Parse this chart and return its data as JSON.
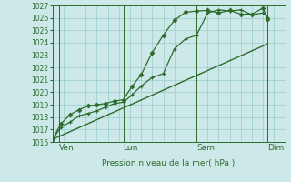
{
  "xlabel": "Pression niveau de la mer( hPa )",
  "bg_color": "#cce8e8",
  "grid_color": "#99cccc",
  "line_color": "#2d6b2d",
  "ylim": [
    1016,
    1027
  ],
  "xlim": [
    0,
    10.5
  ],
  "yticks": [
    1016,
    1017,
    1018,
    1019,
    1020,
    1021,
    1022,
    1023,
    1024,
    1025,
    1026,
    1027
  ],
  "day_labels": [
    "Ven",
    "Lun",
    "Sam",
    "Dim"
  ],
  "day_positions": [
    0.3,
    3.2,
    6.5,
    9.7
  ],
  "vline_positions": [
    0.3,
    3.2,
    6.5,
    9.7
  ],
  "series1_x": [
    0.0,
    0.4,
    0.8,
    1.2,
    1.6,
    2.0,
    2.4,
    2.8,
    3.2,
    3.6,
    4.0,
    4.5,
    5.0,
    5.5,
    6.0,
    6.5,
    7.0,
    7.5,
    8.0,
    8.5,
    9.0,
    9.5,
    9.7
  ],
  "series1_y": [
    1016.2,
    1017.2,
    1017.6,
    1018.1,
    1018.3,
    1018.5,
    1018.8,
    1019.1,
    1019.2,
    1019.8,
    1020.5,
    1021.2,
    1021.5,
    1023.5,
    1024.3,
    1024.6,
    1026.4,
    1026.65,
    1026.55,
    1026.65,
    1026.25,
    1026.4,
    1026.05
  ],
  "series2_x": [
    0.0,
    0.4,
    0.8,
    1.2,
    1.6,
    2.0,
    2.4,
    2.8,
    3.2,
    3.6,
    4.0,
    4.5,
    5.0,
    5.5,
    6.0,
    6.5,
    7.0,
    7.5,
    8.0,
    8.5,
    9.0,
    9.5,
    9.7
  ],
  "series2_y": [
    1016.2,
    1017.5,
    1018.2,
    1018.6,
    1018.9,
    1019.0,
    1019.1,
    1019.3,
    1019.4,
    1020.5,
    1021.4,
    1023.2,
    1024.6,
    1025.8,
    1026.45,
    1026.55,
    1026.6,
    1026.4,
    1026.6,
    1026.3,
    1026.3,
    1026.8,
    1025.9
  ],
  "series3_x": [
    0.0,
    9.7
  ],
  "series3_y": [
    1016.2,
    1023.9
  ]
}
